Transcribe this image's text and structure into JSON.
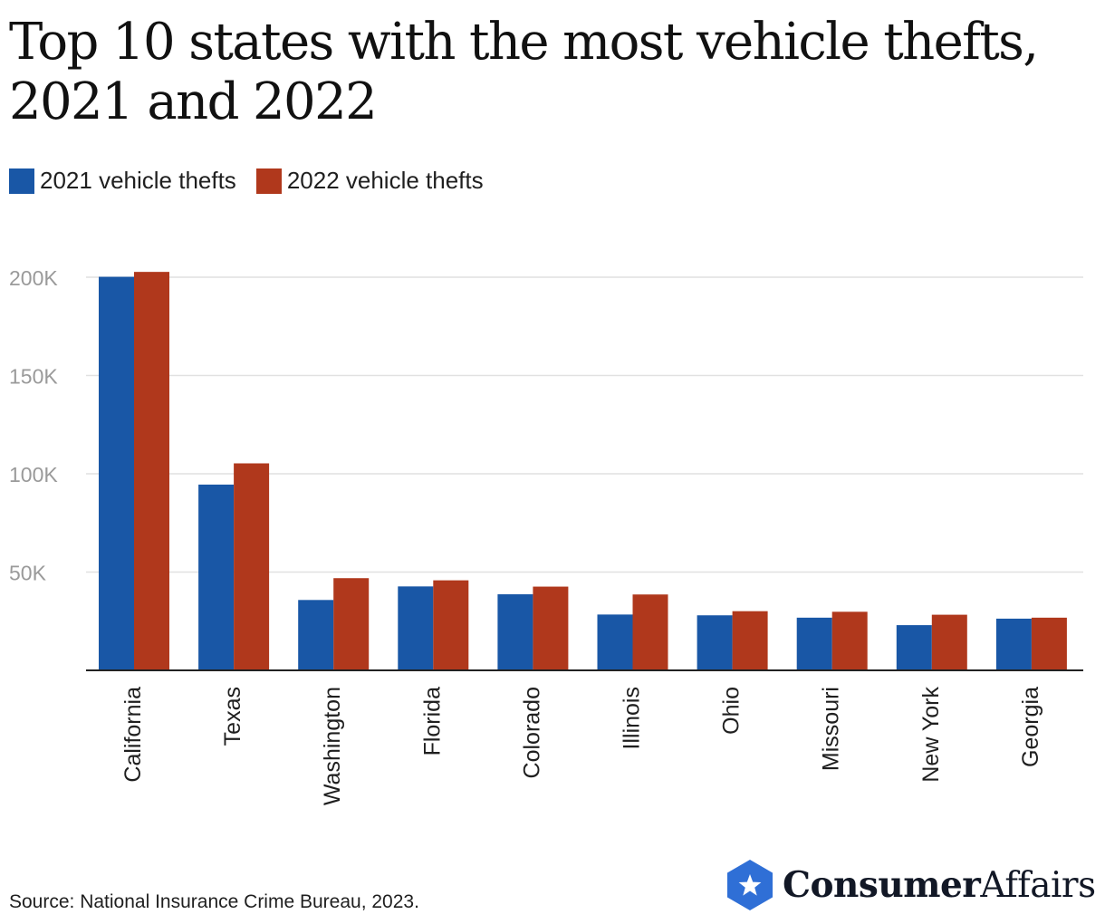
{
  "title": "Top 10 states with the most vehicle thefts, 2021 and 2022",
  "legend": [
    {
      "label": "2021 vehicle thefts",
      "color": "#1957a6"
    },
    {
      "label": "2022 vehicle thefts",
      "color": "#b0381c"
    }
  ],
  "source": "Source: National Insurance Crime Bureau, 2023.",
  "brand": {
    "bold": "Consumer",
    "light": "Affairs",
    "icon": "star-hexagon-icon"
  },
  "chart_data": {
    "type": "bar",
    "title": "Top 10 states with the most vehicle thefts, 2021 and 2022",
    "categories": [
      "California",
      "Texas",
      "Washington",
      "Florida",
      "Colorado",
      "Illinois",
      "Ohio",
      "Missouri",
      "New York",
      "Georgia"
    ],
    "series": [
      {
        "name": "2021 vehicle thefts",
        "color": "#1957a6",
        "values": [
          200200,
          94500,
          35800,
          42700,
          38700,
          28400,
          28000,
          26800,
          23000,
          26300
        ]
      },
      {
        "name": "2022 vehicle thefts",
        "color": "#b0381c",
        "values": [
          202700,
          105300,
          46900,
          45800,
          42600,
          38600,
          30100,
          29800,
          28300,
          26800
        ]
      }
    ],
    "y_ticks": [
      {
        "value": 50000,
        "label": "50K"
      },
      {
        "value": 100000,
        "label": "100K"
      },
      {
        "value": 150000,
        "label": "150K"
      },
      {
        "value": 200000,
        "label": "200K"
      }
    ],
    "ylim": [
      0,
      200000
    ],
    "grid": true,
    "xlabel": "",
    "ylabel": "",
    "legend_position": "top-left"
  }
}
